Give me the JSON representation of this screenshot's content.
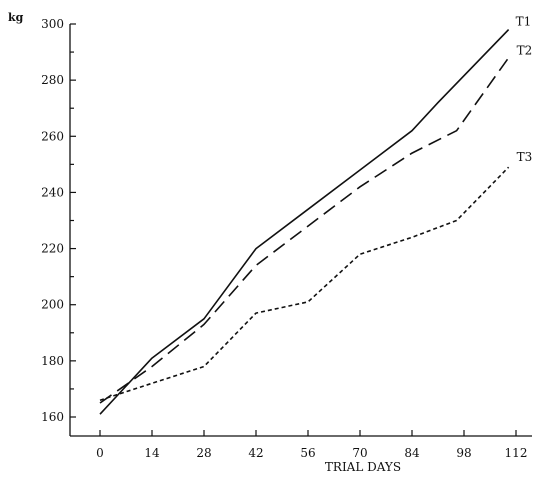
{
  "chart_data": {
    "type": "line",
    "title": "",
    "xlabel": "TRIAL DAYS",
    "ylabel": "kg",
    "xlim": [
      0,
      112
    ],
    "ylim": [
      160,
      300
    ],
    "x_ticks": [
      0,
      14,
      28,
      42,
      56,
      70,
      84,
      98,
      112
    ],
    "y_ticks": [
      160,
      180,
      200,
      220,
      240,
      260,
      280,
      300
    ],
    "grid": false,
    "legend": "inline labels at line ends",
    "series": [
      {
        "name": "T1",
        "style": "solid",
        "points": [
          [
            0,
            161
          ],
          [
            14,
            181
          ],
          [
            28,
            195
          ],
          [
            42,
            220
          ],
          [
            56,
            234
          ],
          [
            70,
            248
          ],
          [
            84,
            262
          ],
          [
            91,
            272
          ],
          [
            110,
            298
          ]
        ]
      },
      {
        "name": "T2",
        "style": "dashed",
        "points": [
          [
            0,
            165
          ],
          [
            14,
            178
          ],
          [
            28,
            193
          ],
          [
            42,
            214
          ],
          [
            56,
            228
          ],
          [
            70,
            242
          ],
          [
            84,
            254
          ],
          [
            96,
            262
          ],
          [
            110,
            288
          ]
        ]
      },
      {
        "name": "T3",
        "style": "dotted",
        "points": [
          [
            0,
            166
          ],
          [
            14,
            172
          ],
          [
            28,
            178
          ],
          [
            42,
            197
          ],
          [
            56,
            201
          ],
          [
            70,
            218
          ],
          [
            84,
            224
          ],
          [
            96,
            230
          ],
          [
            110,
            249
          ]
        ]
      }
    ]
  }
}
